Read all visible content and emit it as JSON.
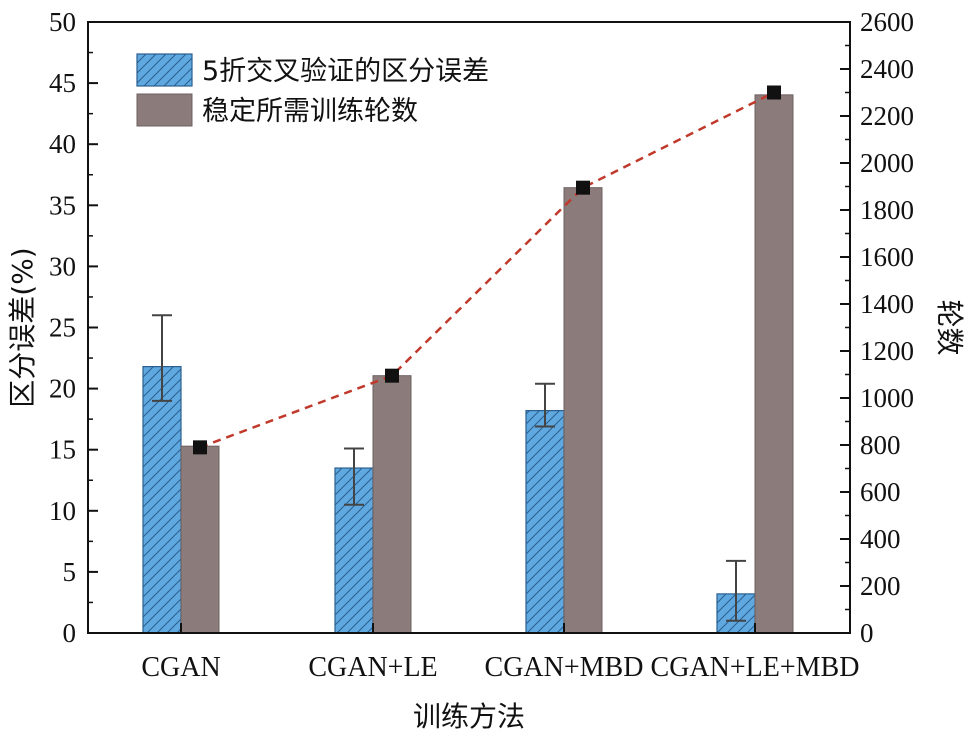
{
  "chart_data": {
    "type": "bar",
    "categories": [
      "CGAN",
      "CGAN+LE",
      "CGAN+MBD",
      "CGAN+LE+MBD"
    ],
    "xlabel": "训练方法",
    "ylabel_left": "区分误差(%)",
    "ylabel_right": "轮数",
    "ylim_left": [
      0,
      50
    ],
    "ylim_right": [
      0,
      2600
    ],
    "yticks_left": [
      0,
      5,
      10,
      15,
      20,
      25,
      30,
      35,
      40,
      45,
      50
    ],
    "yticks_right": [
      0,
      200,
      400,
      600,
      800,
      1000,
      1200,
      1400,
      1600,
      1800,
      2000,
      2200,
      2400,
      2600
    ],
    "grid": false,
    "legend_position": "top-left",
    "series": [
      {
        "name": "5折交叉验证的区分误差",
        "axis": "left",
        "style": "hatched",
        "color": "#5fa8e0",
        "values": [
          21.8,
          13.5,
          18.2,
          3.2
        ],
        "error_low": [
          19.0,
          10.5,
          16.9,
          1.0
        ],
        "error_high": [
          26.0,
          15.1,
          20.4,
          5.9
        ]
      },
      {
        "name": "稳定所需训练轮数",
        "axis": "right",
        "style": "solid",
        "color": "#8c7b7b",
        "values": [
          795,
          1095,
          1895,
          2290
        ],
        "line_markers": [
          790,
          1095,
          1895,
          2300
        ],
        "line_color": "#c0392b",
        "marker_color": "#111111"
      }
    ]
  }
}
